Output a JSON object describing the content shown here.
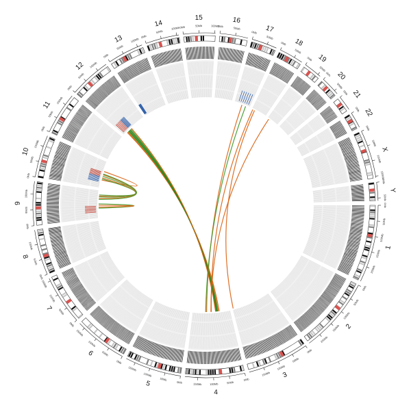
{
  "colors": {
    "track_bg": "#f1f1f1",
    "track_line": "#dcdcdc",
    "tick": "#222222",
    "band_dark": "#111111",
    "band_mid": "#808080",
    "band_light": "#c8c8c8",
    "centromere": "#d9534f",
    "link_orange": "#d95f0e",
    "link_green": "#3a9a28",
    "link_darkgreen": "#2e6e10",
    "link_blue": "#3a6fb0",
    "mark_red": "#c0392b",
    "mark_blue": "#2f5fa8"
  },
  "chromosomes": [
    {
      "name": "1",
      "size": 249,
      "ticks": [
        "0Mb",
        "50Mb",
        "100Mb",
        "150Mb",
        "200Mb"
      ]
    },
    {
      "name": "2",
      "size": 243,
      "ticks": [
        "0Mb",
        "50Mb",
        "100Mb",
        "150Mb",
        "200Mb"
      ]
    },
    {
      "name": "3",
      "size": 198,
      "ticks": [
        "0Mb",
        "50Mb",
        "100Mb",
        "150Mb"
      ]
    },
    {
      "name": "4",
      "size": 191,
      "ticks": [
        "0Mb",
        "50Mb",
        "100Mb",
        "150Mb"
      ]
    },
    {
      "name": "5",
      "size": 181,
      "ticks": [
        "0Mb",
        "50Mb",
        "100Mb",
        "150Mb"
      ]
    },
    {
      "name": "6",
      "size": 171,
      "ticks": [
        "0Mb",
        "50Mb",
        "100Mb",
        "150Mb"
      ]
    },
    {
      "name": "7",
      "size": 159,
      "ticks": [
        "0Mb",
        "50Mb",
        "100Mb",
        "150Mb"
      ]
    },
    {
      "name": "8",
      "size": 146,
      "ticks": [
        "0Mb",
        "50Mb",
        "100Mb"
      ]
    },
    {
      "name": "9",
      "size": 141,
      "ticks": [
        "0Mb",
        "50Mb",
        "100Mb"
      ]
    },
    {
      "name": "10",
      "size": 136,
      "ticks": [
        "0Mb",
        "50Mb",
        "100Mb"
      ]
    },
    {
      "name": "11",
      "size": 135,
      "ticks": [
        "0Mb",
        "50Mb",
        "100Mb"
      ]
    },
    {
      "name": "12",
      "size": 133,
      "ticks": [
        "0Mb",
        "50Mb",
        "100Mb"
      ]
    },
    {
      "name": "13",
      "size": 115,
      "ticks": [
        "0Mb",
        "50Mb",
        "100Mb"
      ]
    },
    {
      "name": "14",
      "size": 107,
      "ticks": [
        "0Mb",
        "50Mb",
        "100Mb"
      ]
    },
    {
      "name": "15",
      "size": 102,
      "ticks": [
        "0Mb",
        "50Mb",
        "100Mb"
      ]
    },
    {
      "name": "16",
      "size": 90,
      "ticks": [
        "0Mb",
        "50Mb"
      ]
    },
    {
      "name": "17",
      "size": 81,
      "ticks": [
        "0Mb",
        "50Mb"
      ]
    },
    {
      "name": "18",
      "size": 78,
      "ticks": [
        "0Mb",
        "50Mb"
      ]
    },
    {
      "name": "19",
      "size": 59,
      "ticks": [
        "0Mb",
        "50Mb"
      ]
    },
    {
      "name": "20",
      "size": 63,
      "ticks": [
        "0Mb",
        "50Mb"
      ]
    },
    {
      "name": "21",
      "size": 48,
      "ticks": [
        "0Mb"
      ]
    },
    {
      "name": "22",
      "size": 51,
      "ticks": [
        "0Mb"
      ]
    },
    {
      "name": "X",
      "size": 155,
      "ticks": [
        "0Mb",
        "50Mb",
        "100Mb",
        "150Mb"
      ]
    },
    {
      "name": "Y",
      "size": 59,
      "ticks": [
        "0Mb",
        "50Mb"
      ]
    }
  ],
  "links": [
    {
      "from": [
        "12",
        20
      ],
      "to": [
        "4",
        55
      ],
      "color": "orange"
    },
    {
      "from": [
        "12",
        24
      ],
      "to": [
        "4",
        60
      ],
      "color": "orange"
    },
    {
      "from": [
        "12",
        28
      ],
      "to": [
        "4",
        63
      ],
      "color": "green"
    },
    {
      "from": [
        "12",
        32
      ],
      "to": [
        "4",
        66
      ],
      "color": "darkgreen"
    },
    {
      "from": [
        "12",
        36
      ],
      "to": [
        "4",
        68
      ],
      "color": "green"
    },
    {
      "from": [
        "12",
        40
      ],
      "to": [
        "4",
        70
      ],
      "color": "darkgreen"
    },
    {
      "from": [
        "12",
        45
      ],
      "to": [
        "4",
        72
      ],
      "color": "green"
    },
    {
      "from": [
        "12",
        50
      ],
      "to": [
        "4",
        74
      ],
      "color": "orange"
    },
    {
      "from": [
        "17",
        40
      ],
      "to": [
        "4",
        120
      ],
      "color": "orange"
    },
    {
      "from": [
        "17",
        60
      ],
      "to": [
        "4",
        125
      ],
      "color": "green"
    },
    {
      "from": [
        "18",
        5
      ],
      "to": [
        "4",
        96
      ],
      "color": "orange"
    },
    {
      "from": [
        "18",
        15
      ],
      "to": [
        "3",
        195
      ],
      "color": "orange"
    },
    {
      "from": [
        "19",
        8
      ],
      "to": [
        "4",
        98
      ],
      "color": "orange"
    },
    {
      "from": [
        "10",
        40
      ],
      "to": [
        "10",
        85
      ],
      "color": "orange"
    },
    {
      "from": [
        "10",
        46
      ],
      "to": [
        "9",
        118
      ],
      "color": "green"
    },
    {
      "from": [
        "10",
        52
      ],
      "to": [
        "9",
        112
      ],
      "color": "orange"
    },
    {
      "from": [
        "10",
        60
      ],
      "to": [
        "9",
        108
      ],
      "color": "green"
    },
    {
      "from": [
        "10",
        68
      ],
      "to": [
        "9",
        100
      ],
      "color": "orange"
    },
    {
      "from": [
        "10",
        72
      ],
      "to": [
        "9",
        95
      ],
      "color": "green"
    },
    {
      "from": [
        "9",
        50
      ],
      "to": [
        "9",
        72
      ],
      "color": "green"
    },
    {
      "from": [
        "9",
        55
      ],
      "to": [
        "9",
        65
      ],
      "color": "orange"
    }
  ],
  "marks": [
    {
      "chr": "12",
      "from": 10,
      "to": 40,
      "color": "red"
    },
    {
      "chr": "12",
      "from": 40,
      "to": 60,
      "color": "blue"
    },
    {
      "chr": "13",
      "from": 0,
      "to": 10,
      "color": "blue"
    },
    {
      "chr": "10",
      "from": 55,
      "to": 80,
      "color": "red"
    },
    {
      "chr": "10",
      "from": 30,
      "to": 55,
      "color": "blue"
    },
    {
      "chr": "9",
      "from": 30,
      "to": 60,
      "color": "red"
    },
    {
      "chr": "17",
      "from": 20,
      "to": 70,
      "color": "blue"
    }
  ]
}
